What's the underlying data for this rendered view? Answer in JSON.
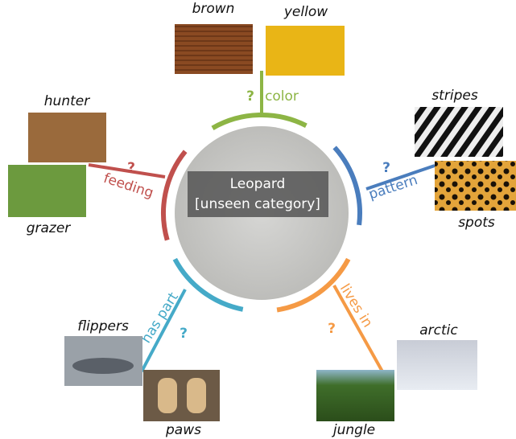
{
  "center": {
    "title": "Leopard",
    "subtitle": "[unseen category]"
  },
  "attributes": [
    {
      "name": "color",
      "question": "?",
      "options": [
        "brown",
        "yellow"
      ]
    },
    {
      "name": "pattern",
      "question": "?",
      "options": [
        "stripes",
        "spots"
      ]
    },
    {
      "name": "lives in",
      "question": "?",
      "options": [
        "arctic",
        "jungle"
      ]
    },
    {
      "name": "has part",
      "question": "?",
      "options": [
        "flippers",
        "paws"
      ]
    },
    {
      "name": "feeding",
      "question": "?",
      "options": [
        "hunter",
        "grazer"
      ]
    }
  ]
}
